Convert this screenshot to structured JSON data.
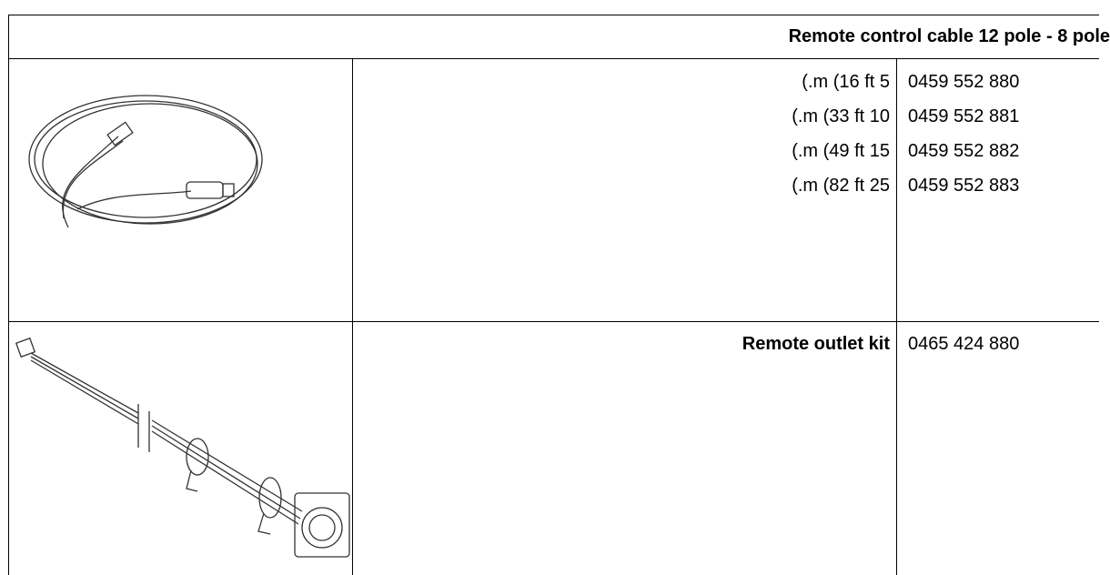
{
  "header": {
    "title": "Remote control cable 12 pole - 8 pole"
  },
  "rows": [
    {
      "lengths": [
        "(.m (16 ft 5",
        "(.m (33 ft 10",
        "(.m (49 ft 15",
        "(.m (82 ft 25"
      ],
      "part_numbers": [
        "0459 552 880",
        "0459 552 881",
        "0459 552 882",
        "0459 552 883"
      ]
    },
    {
      "label": "Remote outlet kit",
      "part_number": "0465 424 880"
    }
  ]
}
